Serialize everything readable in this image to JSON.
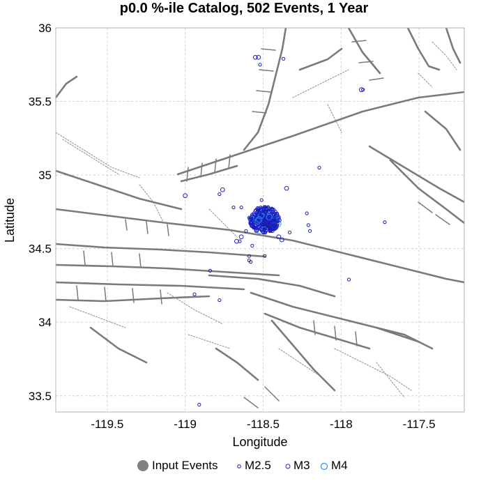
{
  "chart_data": {
    "type": "scatter",
    "title": "p0.0 %-ile Catalog, 502 Events, 1 Year",
    "xlabel": "Longitude",
    "ylabel": "Latitude",
    "xlim": [
      -119.83,
      -117.21
    ],
    "ylim": [
      33.39,
      36.0
    ],
    "xticks": [
      -119.5,
      -119,
      -118.5,
      -118,
      -117.5
    ],
    "yticks": [
      33.5,
      34,
      34.5,
      35,
      35.5,
      36
    ],
    "xtick_labels": [
      "-119.5",
      "-119",
      "-118.5",
      "-118",
      "-117.5"
    ],
    "ytick_labels": [
      "33.5",
      "34",
      "34.5",
      "35",
      "35.5",
      "36"
    ],
    "grid": true,
    "legend_position": "bottom",
    "series": [
      {
        "name": "Input Events",
        "marker": "filled-circle",
        "color": "#808080"
      },
      {
        "name": "M2.5",
        "marker": "open-circle",
        "color": "#1a1aa8"
      },
      {
        "name": "M3",
        "marker": "open-circle",
        "color": "#2222cc"
      },
      {
        "name": "M4",
        "marker": "open-circle",
        "color": "#1e90ff"
      }
    ],
    "events": [
      {
        "lon": -118.55,
        "lat": 35.8,
        "mag": 3.0
      },
      {
        "lon": -118.53,
        "lat": 35.8,
        "mag": 3.0
      },
      {
        "lon": -118.52,
        "lat": 35.75,
        "mag": 2.5
      },
      {
        "lon": -118.37,
        "lat": 35.79,
        "mag": 2.5
      },
      {
        "lon": -117.87,
        "lat": 35.58,
        "mag": 3.0
      },
      {
        "lon": -117.86,
        "lat": 35.58,
        "mag": 2.5
      },
      {
        "lon": -118.14,
        "lat": 35.05,
        "mag": 2.5
      },
      {
        "lon": -118.35,
        "lat": 34.91,
        "mag": 3.0
      },
      {
        "lon": -118.76,
        "lat": 34.9,
        "mag": 3.0
      },
      {
        "lon": -118.78,
        "lat": 34.87,
        "mag": 2.5
      },
      {
        "lon": -119.0,
        "lat": 34.86,
        "mag": 3.0
      },
      {
        "lon": -118.69,
        "lat": 34.78,
        "mag": 2.5
      },
      {
        "lon": -118.64,
        "lat": 34.78,
        "mag": 2.5
      },
      {
        "lon": -118.59,
        "lat": 34.71,
        "mag": 2.5
      },
      {
        "lon": -118.22,
        "lat": 34.74,
        "mag": 2.5
      },
      {
        "lon": -118.21,
        "lat": 34.66,
        "mag": 2.5
      },
      {
        "lon": -118.2,
        "lat": 34.62,
        "mag": 2.5
      },
      {
        "lon": -118.33,
        "lat": 34.61,
        "mag": 2.5
      },
      {
        "lon": -118.4,
        "lat": 34.58,
        "mag": 3.0
      },
      {
        "lon": -118.38,
        "lat": 34.56,
        "mag": 3.0
      },
      {
        "lon": -118.61,
        "lat": 34.62,
        "mag": 2.5
      },
      {
        "lon": -118.64,
        "lat": 34.58,
        "mag": 3.0
      },
      {
        "lon": -118.65,
        "lat": 34.55,
        "mag": 2.5
      },
      {
        "lon": -118.67,
        "lat": 34.55,
        "mag": 3.0
      },
      {
        "lon": -118.57,
        "lat": 34.52,
        "mag": 2.5
      },
      {
        "lon": -118.59,
        "lat": 34.45,
        "mag": 2.5
      },
      {
        "lon": -118.49,
        "lat": 34.45,
        "mag": 2.5
      },
      {
        "lon": -118.59,
        "lat": 34.42,
        "mag": 2.5
      },
      {
        "lon": -118.58,
        "lat": 34.41,
        "mag": 2.5
      },
      {
        "lon": -118.84,
        "lat": 34.35,
        "mag": 2.5
      },
      {
        "lon": -117.72,
        "lat": 34.68,
        "mag": 2.5
      },
      {
        "lon": -117.95,
        "lat": 34.29,
        "mag": 2.5
      },
      {
        "lon": -118.94,
        "lat": 34.19,
        "mag": 2.5
      },
      {
        "lon": -118.78,
        "lat": 34.15,
        "mag": 2.5
      },
      {
        "lon": -118.91,
        "lat": 33.44,
        "mag": 2.5
      },
      {
        "lon": -118.51,
        "lat": 34.83,
        "mag": 2.5
      },
      {
        "lon": -118.47,
        "lat": 34.69,
        "mag": 4.0
      },
      {
        "lon": -118.5,
        "lat": 34.7,
        "mag": 3.0
      },
      {
        "lon": -118.44,
        "lat": 34.66,
        "mag": 4.0
      },
      {
        "lon": -118.42,
        "lat": 34.72,
        "mag": 3.0
      }
    ]
  },
  "legend": {
    "input_events": "Input Events",
    "m25": "M2.5",
    "m3": "M3",
    "m4": "M4"
  }
}
